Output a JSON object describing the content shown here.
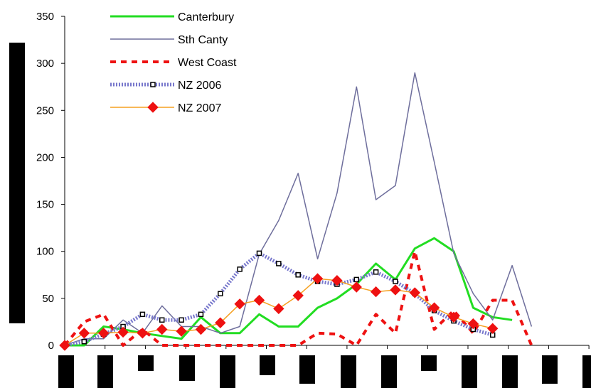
{
  "chart_data": {
    "type": "line",
    "ylim": [
      0,
      350
    ],
    "yticks": [
      0,
      50,
      100,
      150,
      200,
      250,
      300,
      350
    ],
    "grid": false,
    "legend_position": "top-left",
    "x": [
      1,
      2,
      3,
      4,
      5,
      6,
      7,
      8,
      9,
      10,
      11,
      12,
      13,
      14,
      15,
      16,
      17,
      18,
      19,
      20,
      21,
      22,
      23,
      24,
      25,
      26,
      27
    ],
    "xlim": [
      1,
      28
    ],
    "series": [
      {
        "name": "Canterbury",
        "color": "#22dd22",
        "dash": "none",
        "width": 3,
        "marker": "none",
        "values": [
          0,
          0,
          20,
          17,
          13,
          10,
          7,
          30,
          13,
          13,
          33,
          20,
          20,
          40,
          50,
          65,
          87,
          70,
          103,
          114,
          100,
          40,
          30,
          27,
          null,
          null,
          null
        ]
      },
      {
        "name": "Sth Canty",
        "color": "#6e6e9c",
        "dash": "none",
        "width": 1.5,
        "marker": "none",
        "values": [
          0,
          7,
          7,
          27,
          13,
          42,
          20,
          20,
          13,
          20,
          97,
          133,
          183,
          92,
          162,
          275,
          155,
          170,
          290,
          195,
          98,
          55,
          27,
          85,
          20,
          null,
          null
        ]
      },
      {
        "name": "West Coast",
        "color": "#ee1111",
        "dash": "8,7",
        "width": 4,
        "marker": "none",
        "values": [
          0,
          25,
          33,
          0,
          17,
          0,
          0,
          0,
          0,
          0,
          0,
          0,
          0,
          13,
          12,
          0,
          33,
          13,
          100,
          17,
          37,
          13,
          48,
          48,
          0,
          null,
          null
        ]
      },
      {
        "name": "NZ 2006",
        "color": "#7777cc",
        "dash": "2,2",
        "width": 5,
        "marker": "square",
        "values": [
          0,
          4,
          12,
          20,
          33,
          27,
          27,
          33,
          55,
          81,
          98,
          87,
          75,
          68,
          65,
          70,
          78,
          68,
          55,
          37,
          26,
          17,
          11,
          null,
          null,
          null,
          null
        ]
      },
      {
        "name": "NZ 2007",
        "color": "#f5a020",
        "dash": "none",
        "width": 1.5,
        "marker": "diamond",
        "values": [
          0,
          13,
          13,
          14,
          13,
          17,
          15,
          17,
          24,
          44,
          48,
          39,
          53,
          71,
          69,
          62,
          57,
          59,
          56,
          40,
          30,
          23,
          18,
          null,
          null,
          null,
          null
        ]
      }
    ]
  }
}
